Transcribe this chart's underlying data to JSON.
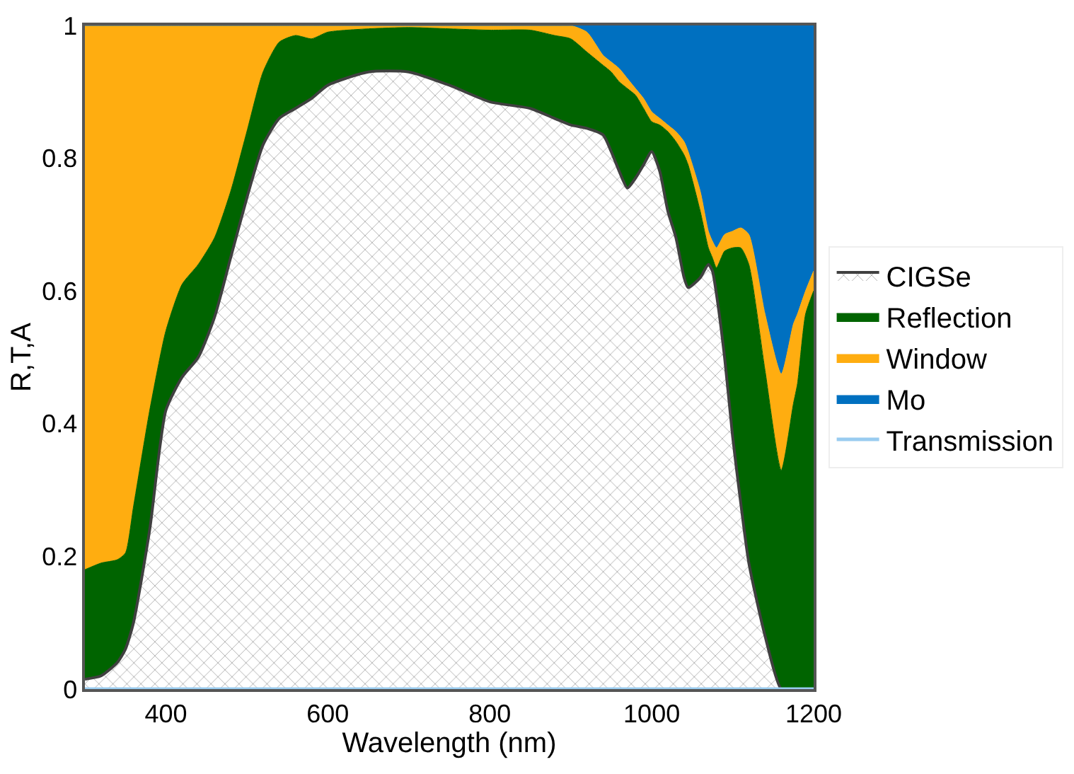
{
  "chart_data": {
    "type": "area",
    "stacked": true,
    "xlabel": "Wavelength (nm)",
    "ylabel": "R,T,A",
    "x": [
      300,
      320,
      340,
      350,
      360,
      380,
      400,
      420,
      440,
      460,
      480,
      500,
      520,
      540,
      560,
      580,
      600,
      650,
      700,
      750,
      800,
      850,
      880,
      900,
      920,
      940,
      950,
      960,
      970,
      980,
      990,
      1000,
      1010,
      1020,
      1030,
      1040,
      1045,
      1060,
      1070,
      1075,
      1080,
      1090,
      1100,
      1110,
      1120,
      1140,
      1160,
      1175,
      1180,
      1190,
      1200
    ],
    "series": [
      {
        "name": "CIGSe",
        "color": "#404040",
        "values": [
          0.015,
          0.02,
          0.04,
          0.06,
          0.1,
          0.24,
          0.42,
          0.47,
          0.5,
          0.56,
          0.65,
          0.74,
          0.82,
          0.86,
          0.875,
          0.89,
          0.91,
          0.93,
          0.93,
          0.91,
          0.885,
          0.875,
          0.86,
          0.85,
          0.845,
          0.835,
          0.81,
          0.78,
          0.755,
          0.77,
          0.79,
          0.81,
          0.78,
          0.72,
          0.68,
          0.62,
          0.605,
          0.62,
          0.64,
          0.63,
          0.595,
          0.5,
          0.38,
          0.28,
          0.19,
          0.08,
          0,
          0,
          0,
          0,
          0
        ]
      },
      {
        "name": "Reflection",
        "color": "#006400",
        "values": [
          0.165,
          0.17,
          0.155,
          0.145,
          0.175,
          0.18,
          0.12,
          0.14,
          0.14,
          0.12,
          0.1,
          0.1,
          0.11,
          0.115,
          0.11,
          0.09,
          0.08,
          0.065,
          0.067,
          0.085,
          0.108,
          0.118,
          0.125,
          0.13,
          0.115,
          0.105,
          0.12,
          0.135,
          0.15,
          0.125,
          0.085,
          0.045,
          0.07,
          0.12,
          0.145,
          0.185,
          0.185,
          0.1,
          0.025,
          0.02,
          0.04,
          0.16,
          0.285,
          0.385,
          0.45,
          0.4,
          0.33,
          0.43,
          0.46,
          0.565,
          0.6
        ]
      },
      {
        "name": "Window",
        "color": "#ffad10",
        "values": [
          0.82,
          0.81,
          0.805,
          0.795,
          0.725,
          0.58,
          0.46,
          0.39,
          0.36,
          0.32,
          0.25,
          0.16,
          0.07,
          0.025,
          0.015,
          0.02,
          0.01,
          0.005,
          0.003,
          0.005,
          0.007,
          0.007,
          0.015,
          0.02,
          0.03,
          0.015,
          0.015,
          0.02,
          0.015,
          0.01,
          0.015,
          0.015,
          0.01,
          0.01,
          0.015,
          0.02,
          0.02,
          0.03,
          0.025,
          0.025,
          0.03,
          0.025,
          0.025,
          0.03,
          0.045,
          0.085,
          0.145,
          0.12,
          0.105,
          0.035,
          0.03
        ]
      },
      {
        "name": "Mo",
        "color": "#0070c0",
        "values": [
          0,
          0,
          0,
          0,
          0,
          0,
          0,
          0,
          0,
          0,
          0,
          0,
          0,
          0,
          0,
          0,
          0,
          0,
          0,
          0,
          0,
          0,
          0,
          0,
          0.01,
          0.045,
          0.055,
          0.065,
          0.08,
          0.095,
          0.11,
          0.13,
          0.14,
          0.15,
          0.16,
          0.175,
          0.19,
          0.25,
          0.31,
          0.325,
          0.335,
          0.315,
          0.31,
          0.305,
          0.315,
          0.435,
          0.525,
          0.45,
          0.435,
          0.4,
          0.37
        ]
      },
      {
        "name": "Transmission",
        "type": "line",
        "color": "#99ccf0",
        "values": [
          0,
          0,
          0,
          0,
          0,
          0,
          0,
          0,
          0,
          0,
          0,
          0,
          0,
          0,
          0,
          0,
          0,
          0,
          0,
          0,
          0,
          0,
          0,
          0,
          0,
          0,
          0,
          0,
          0,
          0,
          0,
          0,
          0,
          0,
          0,
          0,
          0,
          0,
          0,
          0,
          0,
          0,
          0,
          0,
          0,
          0,
          0,
          0,
          0,
          0,
          0
        ]
      }
    ],
    "xlim": [
      300,
      1200
    ],
    "xticks": [
      400,
      600,
      800,
      1000,
      1200
    ],
    "ylim": [
      0,
      1
    ],
    "yticks": [
      0,
      0.2,
      0.4,
      0.6,
      0.8,
      1
    ],
    "legend": "right"
  }
}
